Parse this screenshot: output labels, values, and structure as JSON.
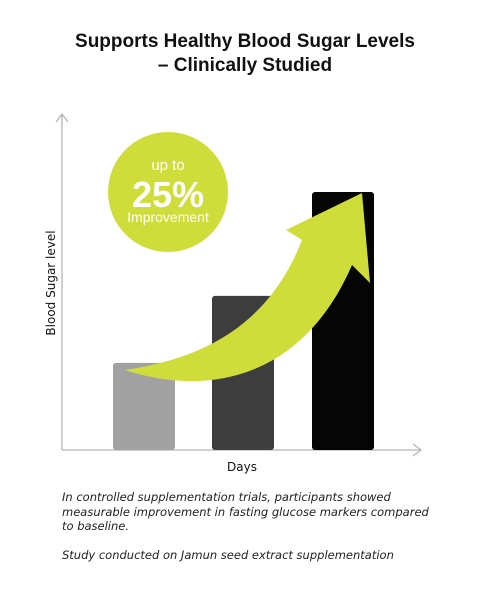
{
  "title_lines": [
    "Supports Healthy Blood Sugar Levels",
    "– Clinically Studied"
  ],
  "badge": {
    "line1": "up to",
    "line2": "25%",
    "line3": "Improvement",
    "color": "#cfdd3a"
  },
  "arrow_color": "#cfdd3a",
  "chart_data": {
    "type": "bar",
    "title": "Supports Healthy Blood Sugar Levels – Clinically Studied",
    "xlabel": "Days",
    "ylabel": "Blood Sugar level",
    "categories": [
      "",
      "",
      ""
    ],
    "values": [
      26,
      46,
      77
    ],
    "ylim": [
      0,
      100
    ],
    "bar_colors": [
      "#a1a1a1",
      "#3d3d3d",
      "#050505"
    ],
    "grid": false,
    "axis_ticks": false
  },
  "notes": {
    "description": "In controlled supplementation trials, participants showed measurable improvement in fasting glucose markers compared to baseline.",
    "study": "Study conducted on Jamun seed extract supplementation"
  }
}
